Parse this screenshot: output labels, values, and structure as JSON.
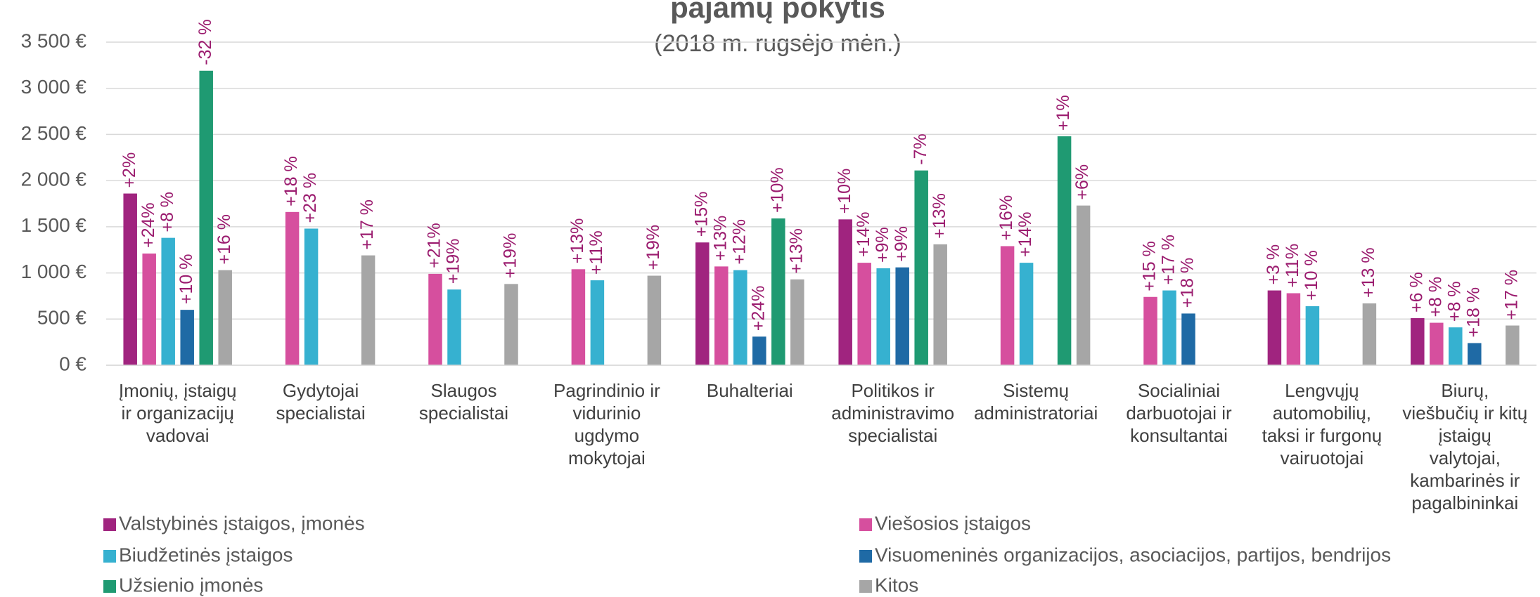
{
  "chart_data": {
    "type": "bar",
    "title": "pajamų pokytis",
    "subtitle": "(2018 m. rugsėjo mėn.)",
    "categories": [
      "Įmonių, įstaigų\nir organizacijų\nvadovai",
      "Gydytojai\nspecialistai",
      "Slaugos\nspecialistai",
      "Pagrindinio ir\nvidurinio\nugdymo\nmokytojai",
      "Buhalteriai",
      "Politikos ir\nadministravimo\nspecialistai",
      "Sistemų\nadministratoriai",
      "Socialiniai\ndarbuotojai ir\nkonsultantai",
      "Lengvųjų\nautomobilių,\ntaksi ir furgonų\nvairuotojai",
      "Biurų,\nviešbučių ir kitų\nįstaigų\nvalytojai,\nkambarinės ir\npagalbininkai"
    ],
    "series": [
      {
        "name": "Valstybinės įstaigos, įmonės",
        "color": "#a0247f",
        "values": [
          1860,
          null,
          null,
          null,
          1330,
          1580,
          null,
          null,
          810,
          510
        ],
        "change_labels": [
          "+2%",
          null,
          null,
          null,
          "+15%",
          "+10%",
          null,
          null,
          "+3 %",
          "+6 %"
        ]
      },
      {
        "name": "Viešosios įstaigos",
        "color": "#d64f9e",
        "values": [
          1210,
          1660,
          990,
          1040,
          1070,
          1110,
          1290,
          740,
          780,
          460
        ],
        "change_labels": [
          "+24%",
          "+18 %",
          "+21%",
          "+13%",
          "+13%",
          "+14%",
          "+16%",
          "+15 %",
          "+11%",
          "+8 %"
        ]
      },
      {
        "name": "Biudžetinės įstaigos",
        "color": "#36b1d0",
        "values": [
          1380,
          1480,
          820,
          920,
          1030,
          1050,
          1110,
          810,
          640,
          410
        ],
        "change_labels": [
          "+8 %",
          "+23 %",
          "+19%",
          "+11%",
          "+12%",
          "+9%",
          "+14%",
          "+17 %",
          "+10 %",
          "+8 %"
        ]
      },
      {
        "name": "Visuomeninės organizacijos, asociacijos, partijos, bendrijos",
        "color": "#1f6aa5",
        "values": [
          600,
          null,
          null,
          null,
          310,
          1060,
          null,
          560,
          null,
          240
        ],
        "change_labels": [
          "+10 %",
          null,
          null,
          null,
          "+24%",
          "+9%",
          null,
          "+18 %",
          null,
          "+18 %"
        ]
      },
      {
        "name": "Užsienio įmonės",
        "color": "#1f9a72",
        "values": [
          3190,
          null,
          null,
          null,
          1590,
          2110,
          2480,
          null,
          null,
          null
        ],
        "change_labels": [
          "-32 %",
          null,
          null,
          null,
          "+10%",
          "-7%",
          "+1%",
          null,
          null,
          null
        ]
      },
      {
        "name": "Kitos",
        "color": "#a6a6a6",
        "values": [
          1030,
          1190,
          880,
          970,
          930,
          1310,
          1730,
          null,
          670,
          430
        ],
        "change_labels": [
          "+16 %",
          "+17 %",
          "+19%",
          "+19%",
          "+13%",
          "+13%",
          "+6%",
          null,
          "+13 %",
          "+17 %"
        ]
      }
    ],
    "ylim": [
      0,
      3500
    ],
    "yticks": [
      {
        "value": 0,
        "label": "0 €"
      },
      {
        "value": 500,
        "label": "500 €"
      },
      {
        "value": 1000,
        "label": "1 000 €"
      },
      {
        "value": 1500,
        "label": "1 500 €"
      },
      {
        "value": 2000,
        "label": "2 000 €"
      },
      {
        "value": 2500,
        "label": "2 500 €"
      },
      {
        "value": 3000,
        "label": "3 000 €"
      },
      {
        "value": 3500,
        "label": "3 500 €"
      }
    ],
    "grid": true,
    "legend": "bottom",
    "label_color": "#9b1c6f"
  }
}
